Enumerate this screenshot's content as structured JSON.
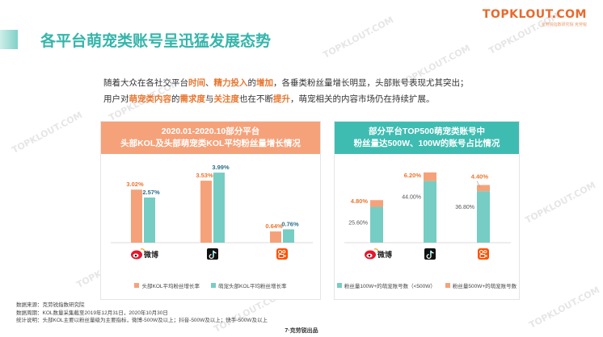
{
  "brand": {
    "logo": "TOPKLOUT.COM",
    "logo_sub": "克劳锐指数研究院 克劳锐"
  },
  "watermark": "TOPKLOUT.COM",
  "title": "各平台萌宠类账号呈迅猛发展态势",
  "intro": {
    "l1_a": "随着大众在各社交平台",
    "l1_b": "时间",
    "l1_c": "、",
    "l1_d": "精力投入",
    "l1_e": "的",
    "l1_f": "增加",
    "l1_g": "，各垂类粉丝量增长明显，头部账号表现尤其突出；",
    "l2_a": "用户对",
    "l2_b": "萌宠类内容",
    "l2_c": "的",
    "l2_d": "需求度",
    "l2_e": "与",
    "l2_f": "关注度",
    "l2_g": "也在不断",
    "l2_h": "提升",
    "l2_i": "，萌宠相关的内容市场仍在持续扩展。"
  },
  "colors": {
    "salmon": "#f5a27a",
    "teal": "#76cdc3",
    "accent": "#e8762f",
    "title": "#35b5aa"
  },
  "chart_data": [
    {
      "type": "bar",
      "title_line1": "2020.01-2020.10部分平台",
      "title_line2": "头部KOL及头部萌宠类KOL平均粉丝量增长情况",
      "categories": [
        "weibo-icon",
        "douyin-icon",
        "kuaishou-icon"
      ],
      "category_labels": [
        "微博",
        "",
        ""
      ],
      "series": [
        {
          "name": "头部KOL平均粉丝增长率",
          "values": [
            3.02,
            3.53,
            0.64
          ],
          "labels": [
            "3.02%",
            "3.53%",
            "0.64%"
          ],
          "color": "#f5a27a"
        },
        {
          "name": "萌宠头部KOL平均粉丝增长率",
          "values": [
            2.57,
            3.99,
            0.76
          ],
          "labels": [
            "2.57%",
            "3.99%",
            "0.76%"
          ],
          "color": "#76cdc3"
        }
      ],
      "ylim": [
        0,
        4.5
      ]
    },
    {
      "type": "bar",
      "stacked": true,
      "title_line1": "部分平台TOP500萌宠类账号中",
      "title_line2": "粉丝量达500W、100W的账号占比情况",
      "categories": [
        "weibo-icon",
        "douyin-icon",
        "kuaishou-icon"
      ],
      "category_labels": [
        "微博",
        "",
        ""
      ],
      "series": [
        {
          "name": "粉丝量100W+的萌宠账号数（<500W）",
          "values": [
            25.6,
            44.0,
            36.8
          ],
          "labels": [
            "25.60%",
            "44.00%",
            "36.80%"
          ],
          "color": "#76cdc3"
        },
        {
          "name": "粉丝量500W+的萌宠账号数",
          "values": [
            4.8,
            6.2,
            4.4
          ],
          "labels": [
            "4.80%",
            "6.20%",
            "4.40%"
          ],
          "color": "#f5a27a"
        }
      ],
      "ylim": [
        0,
        53
      ]
    }
  ],
  "notes": {
    "source": "数据来源：克劳锐指数研究院",
    "period": "数据周期：KOL数量采集截至2019年12月31日，2020年10月30日",
    "explain": "统计说明：头部KOL主要以粉丝量级为主要指标，微博-500W及以上；抖音-500W及以上；快手-500W及以上"
  },
  "footer": "7·克劳锐出品"
}
